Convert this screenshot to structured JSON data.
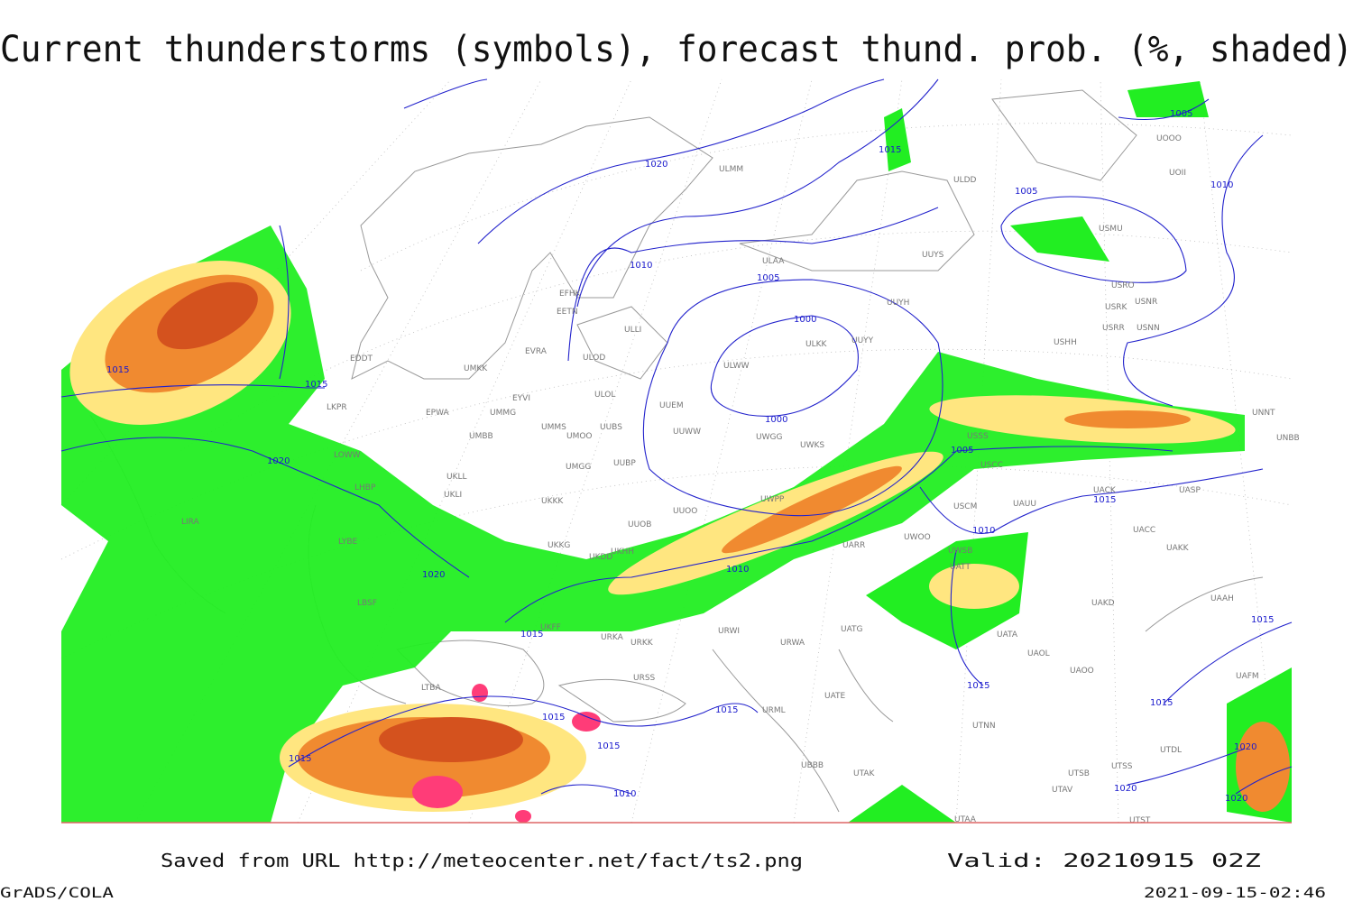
{
  "title": "Current thunderstorms (symbols), forecast thund. prob. (%, shaded)",
  "footer": {
    "saved": "Saved from URL  http://meteocenter.net/fact/ts2.png",
    "valid": "Valid: 20210915 02Z",
    "software": "GrADS/COLA",
    "timestamp": "2021-09-15-02:46"
  },
  "isobar_labels": [
    1015,
    1015,
    1020,
    1020,
    1015,
    1015,
    1015,
    1015,
    1010,
    1020,
    1010,
    1005,
    1000,
    1000,
    1015,
    1005,
    1005,
    1010,
    1005,
    1015,
    1010,
    1010,
    1015,
    1015,
    1015,
    1015,
    1020,
    1020,
    1020
  ],
  "stations": [
    "ULMM",
    "ULDD",
    "EFHK",
    "EETN",
    "ULLI",
    "ULAA",
    "UUYS",
    "UUYH",
    "UUYY",
    "ULKK",
    "ULWW",
    "USRO",
    "USRK",
    "USNR",
    "USRR",
    "USNN",
    "USMU",
    "USHH",
    "UOII",
    "UOOO",
    "EDDT",
    "EVRA",
    "ULOD",
    "UMKK",
    "ULOL",
    "EYVI",
    "EPWA",
    "UMMG",
    "LKPR",
    "UUEM",
    "UMMS",
    "UMOO",
    "UUBS",
    "UUWW",
    "UWGG",
    "UWKS",
    "UMBB",
    "USSS",
    "UUBP",
    "UMGG",
    "UKLL",
    "UKLI",
    "LOWW",
    "LHBP",
    "UKKK",
    "USCC",
    "USCM",
    "UAUU",
    "UACK",
    "UASP",
    "UUOO",
    "UWPP",
    "UUOB",
    "UWOO",
    "UACC",
    "UAKK",
    "UKHH",
    "UKKG",
    "UKDD",
    "UARR",
    "UWSB",
    "UATT",
    "LYBE",
    "LIRA",
    "LBSF",
    "UKFF",
    "URKA",
    "URKK",
    "URWI",
    "URWA",
    "UATG",
    "UATA",
    "UAOL",
    "UAOO",
    "UAKD",
    "UAAH",
    "UAFM",
    "UATE",
    "URML",
    "URSS",
    "LTBA",
    "UTNN",
    "UBBB",
    "UTAK",
    "UTSB",
    "UTSS",
    "UTAV",
    "UTST",
    "UTAA",
    "UNNT",
    "UNBB",
    "UTDL"
  ]
}
